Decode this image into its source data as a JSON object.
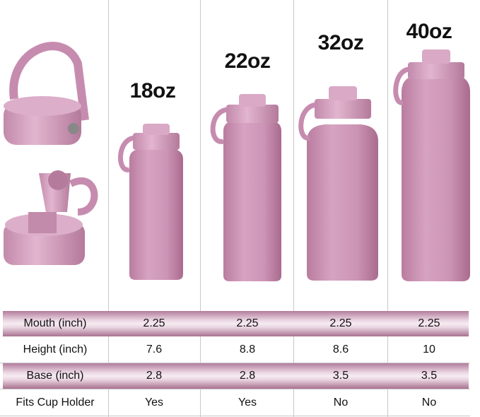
{
  "sizes": [
    "18oz",
    "22oz",
    "32oz",
    "40oz"
  ],
  "colors": {
    "bottle": "#c98fb1",
    "band": "#c08aa9"
  },
  "table": {
    "rows": [
      {
        "label": "Mouth (inch)",
        "values": [
          "2.25",
          "2.25",
          "2.25",
          "2.25"
        ]
      },
      {
        "label": "Height (inch)",
        "values": [
          "7.6",
          "8.8",
          "8.6",
          "10"
        ]
      },
      {
        "label": "Base (inch)",
        "values": [
          "2.8",
          "2.8",
          "3.5",
          "3.5"
        ]
      },
      {
        "label": "Fits Cup Holder",
        "values": [
          "Yes",
          "Yes",
          "No",
          "No"
        ]
      }
    ]
  }
}
